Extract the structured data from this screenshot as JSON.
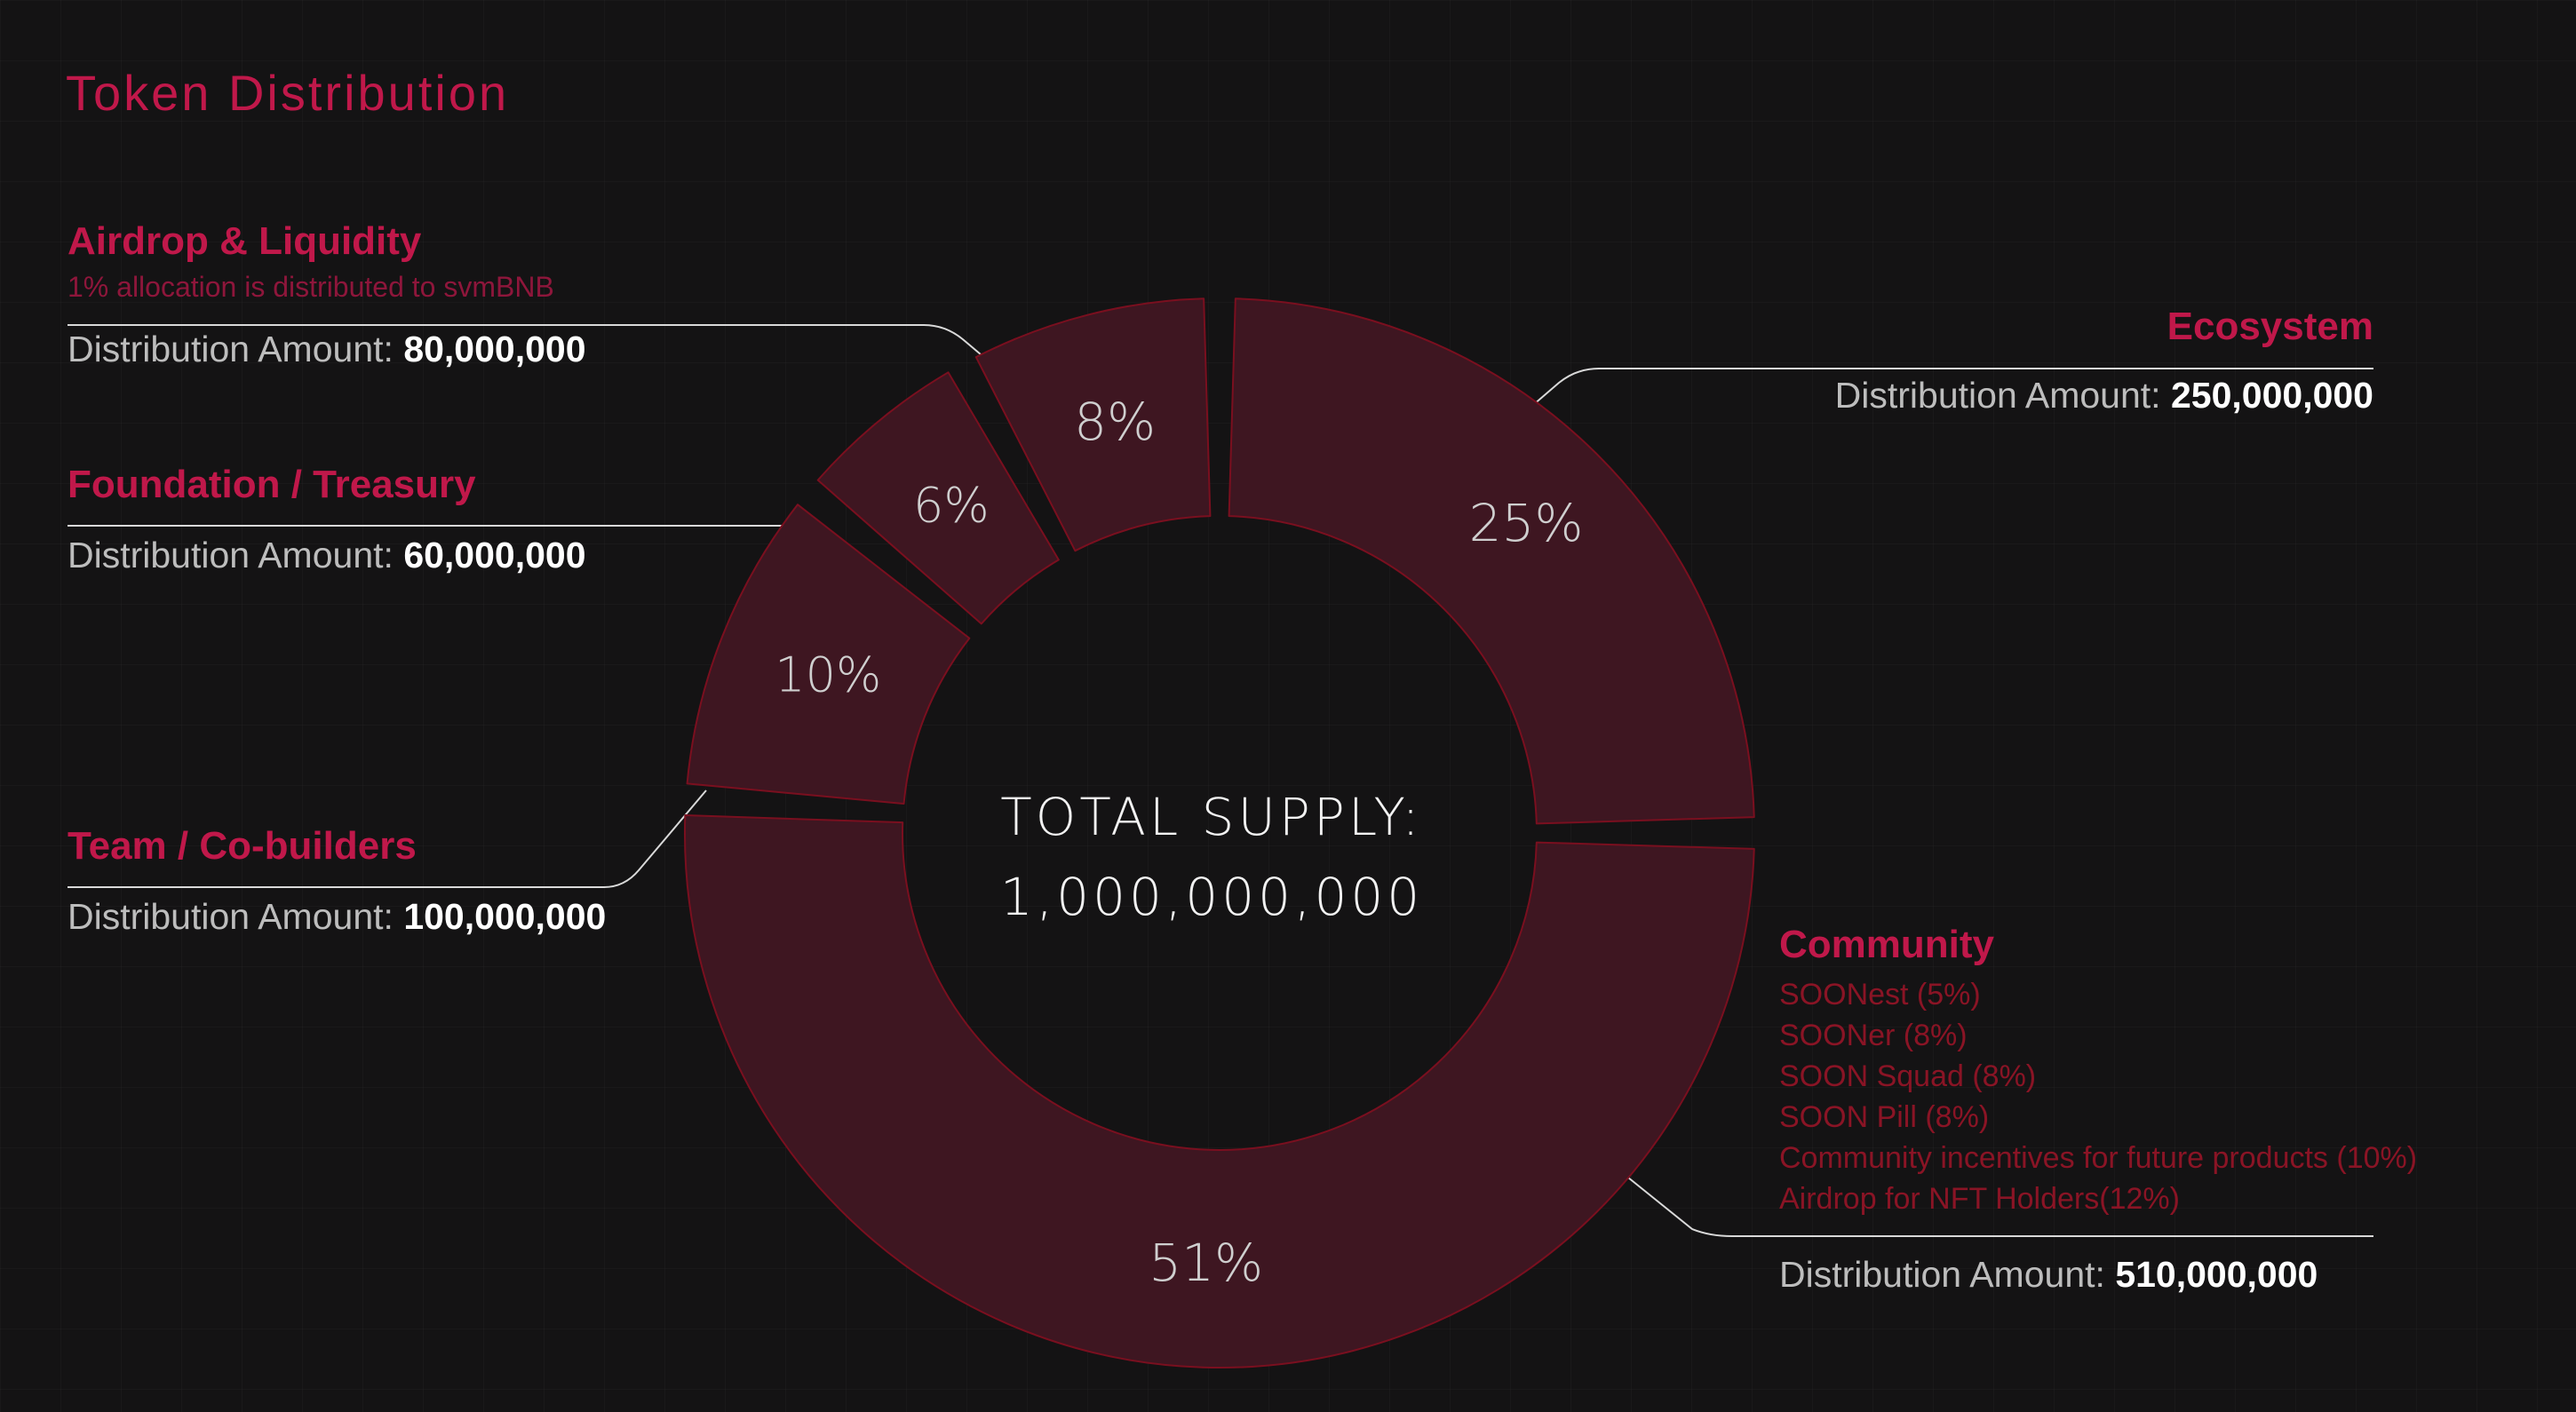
{
  "title": "Token Distribution",
  "amount_prefix": "Distribution Amount:",
  "center": {
    "label": "TOTAL SUPPLY:",
    "value": "1,000,000,000"
  },
  "colors": {
    "accent": "#c0184a",
    "segment_fill": "#3e1621",
    "segment_stroke": "#7a0f1f",
    "connector": "#d9d9d9"
  },
  "chart_data": {
    "type": "pie",
    "title": "Token Distribution",
    "total_label": "TOTAL SUPPLY:",
    "total": 1000000000,
    "slices": [
      {
        "name": "Ecosystem",
        "percent": 25,
        "label": "25%",
        "amount": 250000000
      },
      {
        "name": "Community",
        "percent": 51,
        "label": "51%",
        "amount": 510000000
      },
      {
        "name": "Team / Co-builders",
        "percent": 10,
        "label": "10%",
        "amount": 100000000
      },
      {
        "name": "Foundation / Treasury",
        "percent": 6,
        "label": "6%",
        "amount": 60000000
      },
      {
        "name": "Airdrop & Liquidity",
        "percent": 8,
        "label": "8%",
        "amount": 80000000
      }
    ]
  },
  "segments": {
    "airdrop": {
      "name": "Airdrop & Liquidity",
      "note": "1% allocation is distributed to svmBNB",
      "amount": "80,000,000"
    },
    "foundation": {
      "name": "Foundation / Treasury",
      "amount": "60,000,000"
    },
    "team": {
      "name": "Team / Co-builders",
      "amount": "100,000,000"
    },
    "ecosystem": {
      "name": "Ecosystem",
      "amount": "250,000,000"
    },
    "community": {
      "name": "Community",
      "items": [
        "SOONest (5%)",
        "SOONer (8%)",
        "SOON Squad (8%)",
        "SOON Pill (8%)",
        "Community incentives for future products (10%)",
        "Airdrop for NFT Holders(12%)"
      ],
      "amount": "510,000,000"
    }
  }
}
